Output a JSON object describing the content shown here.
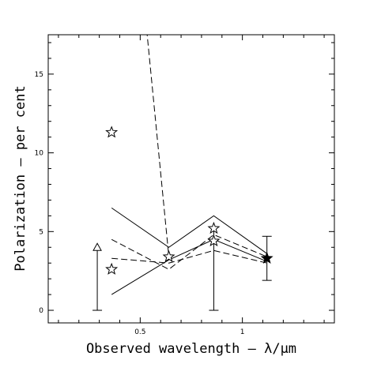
{
  "chart_data": {
    "type": "line",
    "title": "",
    "xlabel": "Observed wavelength – λ/μm",
    "ylabel": "Polarization – per cent",
    "xlim": [
      0.05,
      1.45
    ],
    "ylim": [
      -0.8,
      17.5
    ],
    "xticks": [
      {
        "v": 0.5,
        "label": "0.5"
      },
      {
        "v": 1.0,
        "label": "1"
      }
    ],
    "yticks": [
      {
        "v": 0,
        "label": "0"
      },
      {
        "v": 5,
        "label": "5"
      },
      {
        "v": 10,
        "label": "10"
      },
      {
        "v": 15,
        "label": "15"
      }
    ],
    "grid": false,
    "series": [
      {
        "style": "solid",
        "x": [
          0.36,
          0.64,
          0.86,
          1.12
        ],
        "y": [
          6.5,
          4.0,
          6.0,
          3.6
        ]
      },
      {
        "style": "solid",
        "x": [
          0.36,
          0.64,
          0.86,
          1.12
        ],
        "y": [
          1.0,
          3.2,
          4.5,
          3.1
        ]
      },
      {
        "style": "dashed",
        "x": [
          0.36,
          0.64,
          0.86,
          1.12
        ],
        "y": [
          4.5,
          2.6,
          4.8,
          3.4
        ]
      },
      {
        "style": "dashed",
        "x": [
          0.36,
          0.64,
          0.86,
          1.12
        ],
        "y": [
          3.3,
          3.0,
          3.8,
          3.0
        ]
      },
      {
        "style": "dashed",
        "x": [
          0.5,
          0.64
        ],
        "y": [
          22.0,
          3.4
        ]
      }
    ],
    "markers": [
      {
        "kind": "open-star",
        "x": [
          0.36,
          0.36,
          0.64,
          0.86,
          0.86
        ],
        "y": [
          11.3,
          2.6,
          3.4,
          5.2,
          4.4
        ]
      },
      {
        "kind": "filled-star",
        "x": [
          1.12
        ],
        "y": [
          3.3
        ]
      },
      {
        "kind": "open-triangle",
        "x": [
          0.29
        ],
        "y": [
          4.0
        ]
      }
    ],
    "errorbars": [
      {
        "x": 0.29,
        "ylow": 0.0,
        "yhigh": 4.0,
        "caps": "bottom"
      },
      {
        "x": 0.86,
        "ylow": 0.0,
        "yhigh": 5.2,
        "caps": "bottom"
      },
      {
        "x": 1.12,
        "ylow": 1.9,
        "yhigh": 4.7,
        "caps": "both"
      }
    ]
  }
}
